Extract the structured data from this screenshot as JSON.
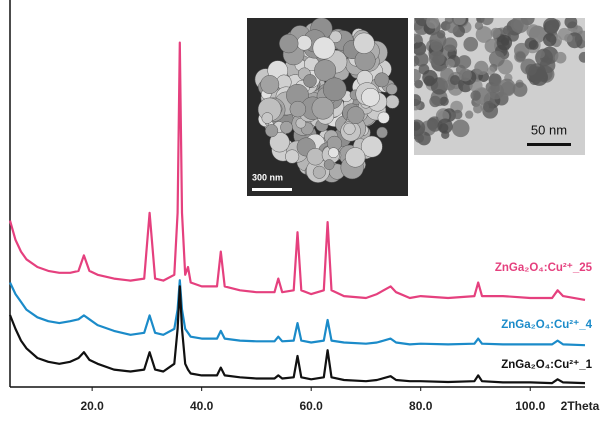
{
  "chart_data": {
    "type": "line",
    "x_label": "2Theta",
    "x": [
      5,
      6,
      7,
      8,
      10,
      12,
      14,
      16,
      17.5,
      18.5,
      19.5,
      21,
      24,
      27,
      29.5,
      30.5,
      31.5,
      33,
      35,
      35.6,
      36,
      36.4,
      37,
      37.5,
      38,
      40,
      42.8,
      43.5,
      44.2,
      47,
      50,
      53.3,
      54,
      54.7,
      56.8,
      57.5,
      58.2,
      60,
      62.3,
      63,
      63.7,
      66,
      70,
      72,
      74.5,
      75.5,
      78,
      80,
      85,
      89.8,
      90.5,
      91.2,
      95,
      100,
      104,
      105,
      106,
      110
    ],
    "series": [
      {
        "name": "ZnGa₂O₄:Cu²⁺_25",
        "color": "#e5407e",
        "values": [
          43,
          38,
          35,
          33,
          31,
          30,
          29.5,
          29.5,
          30,
          34,
          30,
          29,
          28,
          27.5,
          28,
          45,
          28,
          27.5,
          29,
          45,
          89,
          45,
          29,
          31,
          27,
          26,
          26,
          35,
          26,
          25,
          24.5,
          24.5,
          28,
          24.5,
          25,
          40,
          25,
          24,
          25,
          42.6,
          25,
          23.5,
          23,
          24,
          26,
          24.5,
          23,
          23.5,
          23,
          23.5,
          27,
          23.5,
          23.5,
          23,
          23,
          25,
          23.5,
          22.5
        ]
      },
      {
        "name": "ZnGa₂O₄:Cu²⁺_4",
        "color": "#1b8bc9",
        "values": [
          27,
          24,
          22,
          20,
          18,
          17,
          16.5,
          17,
          17.5,
          18.5,
          17.5,
          16,
          14.5,
          13.5,
          14,
          18.5,
          14,
          13.5,
          15,
          20,
          27.6,
          20,
          15,
          14,
          13,
          12.5,
          12.5,
          14.5,
          12.5,
          12,
          11.8,
          11.8,
          13,
          11.8,
          12,
          16.5,
          12,
          11.5,
          12,
          17.3,
          12,
          11.5,
          11.2,
          11.5,
          12.5,
          11.5,
          11,
          11.2,
          11,
          11.2,
          12.5,
          11.2,
          11,
          11,
          11,
          12,
          11,
          10.8
        ]
      },
      {
        "name": "ZnGa₂O₄:Cu²⁺_1",
        "color": "#111111",
        "values": [
          18.6,
          15,
          12,
          10,
          7.5,
          6.5,
          6,
          6.5,
          7.5,
          9,
          7,
          6,
          4.5,
          4,
          4.5,
          9,
          4.5,
          4,
          6,
          15,
          26,
          15,
          6,
          4.5,
          3.5,
          3,
          3,
          5,
          3,
          2.5,
          2.2,
          2.2,
          3,
          2.2,
          2.5,
          8,
          2.5,
          2,
          2.5,
          9.5,
          2.5,
          1.8,
          1.5,
          1.8,
          2.8,
          1.8,
          1.5,
          1.5,
          1.3,
          1.5,
          3,
          1.5,
          1.2,
          1.2,
          1,
          2,
          1.2,
          1
        ]
      }
    ],
    "xlim": [
      5,
      110
    ],
    "ylim": [
      0,
      100
    ],
    "xticks": [
      {
        "value": 20,
        "label": "20.0"
      },
      {
        "value": 40,
        "label": "40.0"
      },
      {
        "value": 60,
        "label": "60.0"
      },
      {
        "value": 80,
        "label": "80.0"
      },
      {
        "value": 100,
        "label": "100.0"
      }
    ],
    "insets": [
      {
        "scale_label": "300 nm"
      },
      {
        "scale_label": "50 nm"
      }
    ]
  }
}
